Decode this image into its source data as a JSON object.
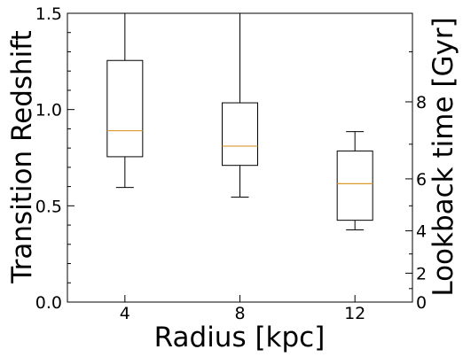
{
  "chart_data": {
    "type": "boxplot",
    "title": "",
    "xlabel": "Radius [kpc]",
    "ylabel": "Transition Redshift",
    "y2label": "Lookback time [Gyr]",
    "categories": [
      "4",
      "8",
      "12"
    ],
    "x": [
      4,
      8,
      12
    ],
    "xlim": [
      2,
      14
    ],
    "ylim": [
      0.0,
      1.5
    ],
    "yticks": [
      "0.0",
      "0.5",
      "1.0",
      "1.5"
    ],
    "y2ticks": [
      {
        "label": "0",
        "redshift": 0.0
      },
      {
        "label": "2",
        "redshift": 0.15
      },
      {
        "label": "4",
        "redshift": 0.37
      },
      {
        "label": "6",
        "redshift": 0.64
      },
      {
        "label": "8",
        "redshift": 1.04
      }
    ],
    "boxes": [
      {
        "name": "4",
        "whisker_low": 0.595,
        "q1": 0.755,
        "median": 0.89,
        "q3": 1.255,
        "whisker_high": 1.5
      },
      {
        "name": "8",
        "whisker_low": 0.545,
        "q1": 0.71,
        "median": 0.81,
        "q3": 1.035,
        "whisker_high": 1.5
      },
      {
        "name": "12",
        "whisker_low": 0.375,
        "q1": 0.425,
        "median": 0.615,
        "q3": 0.785,
        "whisker_high": 0.885
      }
    ],
    "median_color": "#d89a2e",
    "box_color": "#000000",
    "grid": false,
    "legend": "none"
  }
}
